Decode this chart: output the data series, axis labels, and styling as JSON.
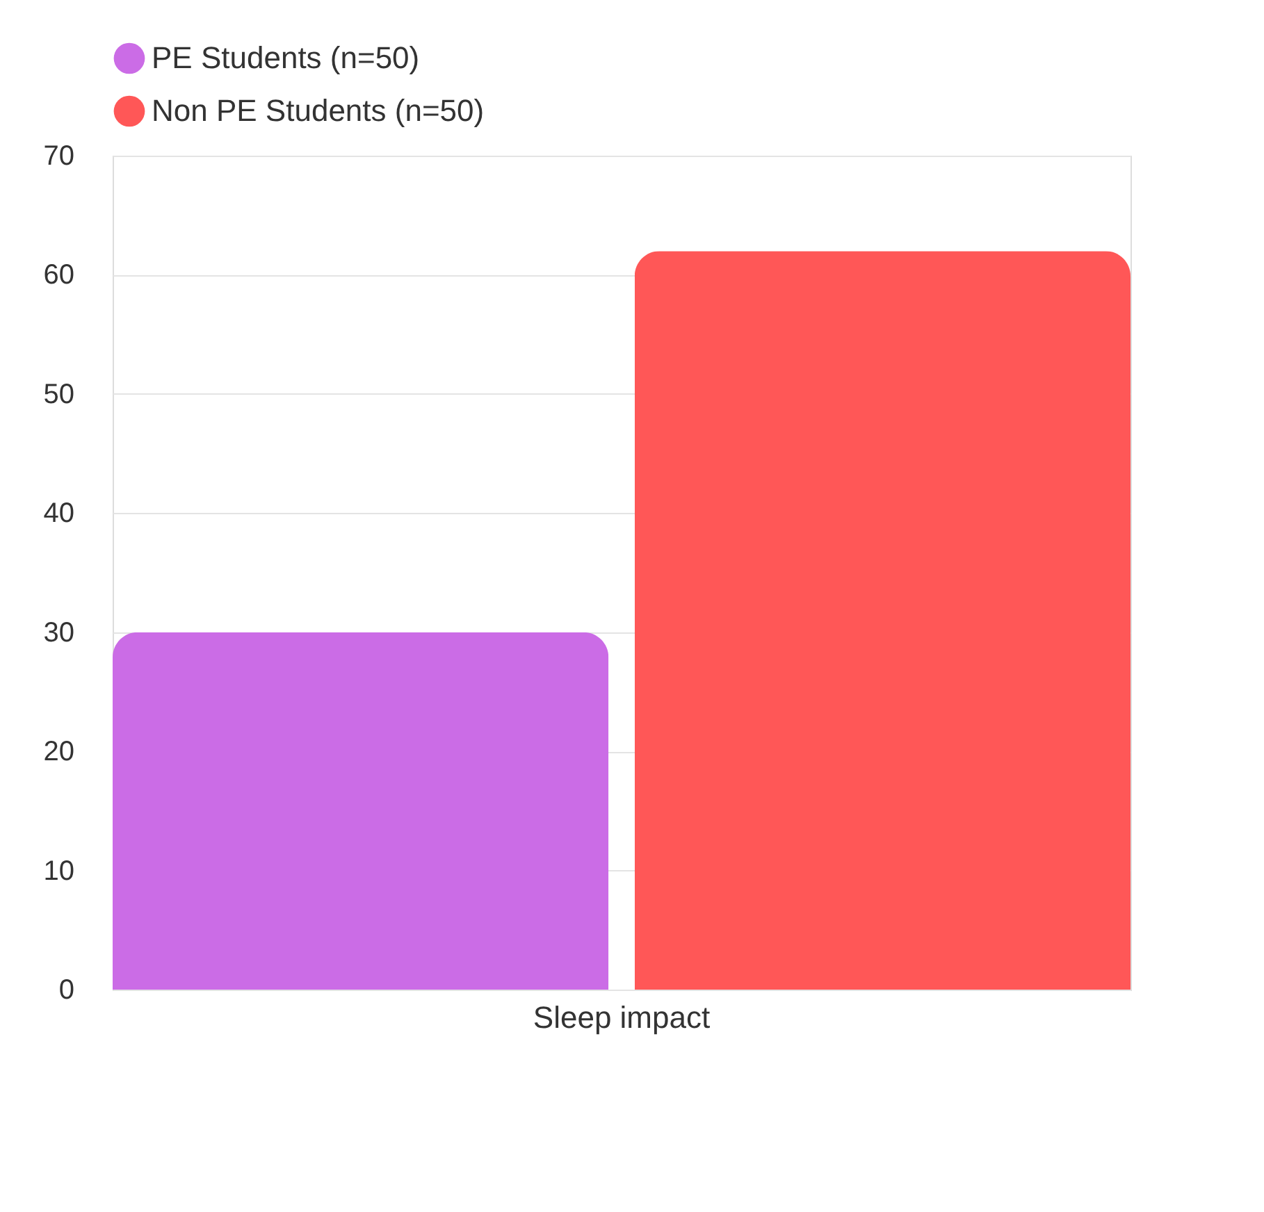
{
  "chart_data": {
    "type": "bar",
    "categories": [
      "Sleep impact"
    ],
    "series": [
      {
        "name": "PE Students (n=50)",
        "color": "#cb6ce6",
        "values": [
          30
        ]
      },
      {
        "name": "Non PE Students (n=50)",
        "color": "#ff5757",
        "values": [
          62
        ]
      }
    ],
    "ylim": [
      0,
      70
    ],
    "yticks": [
      0,
      10,
      20,
      30,
      40,
      50,
      60,
      70
    ],
    "grid": "y",
    "legend": "top"
  }
}
